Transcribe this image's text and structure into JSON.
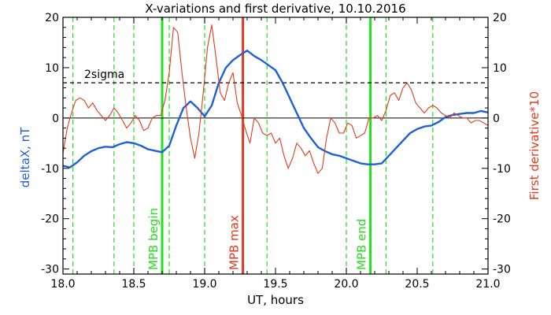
{
  "chart_data": {
    "type": "line",
    "title": "X-variations and first derivative, 10.10.2016",
    "xlabel": "UT, hours",
    "ylabel_left": "deltaX, nT",
    "ylabel_right": "First derivative*10",
    "xlim": [
      18.0,
      21.0
    ],
    "ylim": [
      -31,
      20
    ],
    "x_ticks": [
      "18.0",
      "18.5",
      "19.0",
      "19.5",
      "20.0",
      "20.5",
      "21.0"
    ],
    "y_ticks": [
      "20",
      "10",
      "0",
      "-10",
      "-20",
      "-30"
    ],
    "colors": {
      "deltaX": "#1f5fd8",
      "derivative": "#e23a1e",
      "mpb_lines": "#22e01e",
      "mpb_max": "#e23a1e",
      "sigma": "#000000"
    },
    "series": [
      {
        "key": "deltaX",
        "x": [
          18.0,
          18.05,
          18.1,
          18.15,
          18.2,
          18.25,
          18.3,
          18.35,
          18.4,
          18.45,
          18.5,
          18.55,
          18.6,
          18.65,
          18.7,
          18.75,
          18.8,
          18.85,
          18.9,
          18.95,
          19.0,
          19.05,
          19.1,
          19.15,
          19.2,
          19.25,
          19.3,
          19.35,
          19.4,
          19.45,
          19.5,
          19.55,
          19.6,
          19.65,
          19.7,
          19.75,
          19.8,
          19.85,
          19.9,
          19.95,
          20.0,
          20.05,
          20.1,
          20.15,
          20.2,
          20.25,
          20.3,
          20.35,
          20.4,
          20.45,
          20.5,
          20.55,
          20.6,
          20.65,
          20.7,
          20.75,
          20.8,
          20.85,
          20.9,
          20.95,
          21.0
        ],
        "values": [
          -9.5,
          -9.8,
          -8.8,
          -7.5,
          -6.6,
          -6.0,
          -5.7,
          -5.8,
          -5.2,
          -4.8,
          -5.0,
          -5.5,
          -6.2,
          -6.5,
          -6.8,
          -5.5,
          -1.5,
          2.0,
          3.3,
          2.0,
          0.3,
          2.5,
          7.0,
          10.0,
          11.5,
          12.5,
          13.4,
          12.3,
          11.5,
          10.5,
          9.5,
          7.0,
          4.0,
          1.0,
          -2.0,
          -4.0,
          -5.8,
          -6.6,
          -7.2,
          -7.5,
          -8.0,
          -8.5,
          -9.0,
          -9.2,
          -9.2,
          -9.0,
          -7.5,
          -6.0,
          -4.5,
          -3.0,
          -2.2,
          -1.7,
          -1.5,
          -0.8,
          0.2,
          0.6,
          0.8,
          1.0,
          1.0,
          1.4,
          1.1
        ]
      },
      {
        "key": "derivative",
        "x": [
          18.0,
          18.03,
          18.06,
          18.09,
          18.12,
          18.15,
          18.18,
          18.21,
          18.24,
          18.27,
          18.3,
          18.33,
          18.36,
          18.39,
          18.42,
          18.45,
          18.48,
          18.51,
          18.54,
          18.57,
          18.6,
          18.63,
          18.66,
          18.69,
          18.72,
          18.75,
          18.78,
          18.81,
          18.84,
          18.87,
          18.9,
          18.93,
          18.96,
          18.99,
          19.02,
          19.05,
          19.08,
          19.11,
          19.14,
          19.17,
          19.2,
          19.23,
          19.26,
          19.29,
          19.32,
          19.35,
          19.38,
          19.41,
          19.44,
          19.47,
          19.5,
          19.53,
          19.56,
          19.59,
          19.62,
          19.65,
          19.68,
          19.71,
          19.74,
          19.77,
          19.8,
          19.83,
          19.86,
          19.89,
          19.92,
          19.95,
          19.98,
          20.01,
          20.04,
          20.07,
          20.1,
          20.13,
          20.16,
          20.19,
          20.22,
          20.25,
          20.28,
          20.31,
          20.34,
          20.37,
          20.4,
          20.43,
          20.46,
          20.49,
          20.52,
          20.55,
          20.58,
          20.61,
          20.64,
          20.67,
          20.7,
          20.73,
          20.76,
          20.79,
          20.82,
          20.85,
          20.88,
          20.91,
          20.94,
          20.97,
          21.0
        ],
        "values": [
          -7.0,
          -2.0,
          1.0,
          3.5,
          4.0,
          3.5,
          2.0,
          3.0,
          1.5,
          0.5,
          -0.5,
          0.5,
          2.0,
          1.0,
          -0.5,
          -2.0,
          -1.0,
          0.5,
          -0.5,
          -2.5,
          -2.0,
          0.0,
          0.5,
          0.5,
          3.5,
          9.0,
          18.0,
          17.0,
          9.0,
          2.0,
          -4.0,
          -8.0,
          -3.0,
          5.0,
          14.0,
          18.5,
          12.0,
          5.0,
          3.5,
          7.0,
          9.0,
          3.0,
          0.5,
          -2.5,
          -5.0,
          0.0,
          -1.0,
          -3.0,
          -3.5,
          -3.0,
          -5.0,
          -4.0,
          -7.5,
          -10.0,
          -8.0,
          -5.0,
          -6.0,
          -7.5,
          -6.5,
          -9.0,
          -11.0,
          -10.0,
          -4.0,
          0.0,
          -1.0,
          -3.0,
          -3.0,
          -1.0,
          -1.5,
          -4.0,
          -3.5,
          -3.0,
          0.0,
          0.0,
          0.5,
          -0.5,
          1.5,
          4.5,
          5.0,
          3.5,
          6.0,
          7.0,
          5.5,
          3.0,
          2.0,
          1.0,
          2.0,
          2.5,
          2.0,
          1.0,
          0.5,
          0.0,
          1.0,
          0.5,
          0.0,
          0.0,
          -1.0,
          -0.5,
          -0.5,
          -1.0,
          -1.5
        ]
      }
    ],
    "reference_lines": {
      "sigma_level": 7,
      "sigma_label": "2sigma",
      "zero_level": 0
    },
    "vertical_markers": {
      "dashed_green": [
        18.07,
        18.36,
        18.5,
        18.75,
        19.0,
        19.44,
        20.0,
        20.28,
        20.61
      ],
      "solid_green": [
        {
          "x": 18.7,
          "label": "MPB begin"
        },
        {
          "x": 20.17,
          "label": "MPB end"
        }
      ],
      "solid_red": [
        {
          "x": 19.27,
          "label": "MPB max"
        }
      ]
    }
  }
}
